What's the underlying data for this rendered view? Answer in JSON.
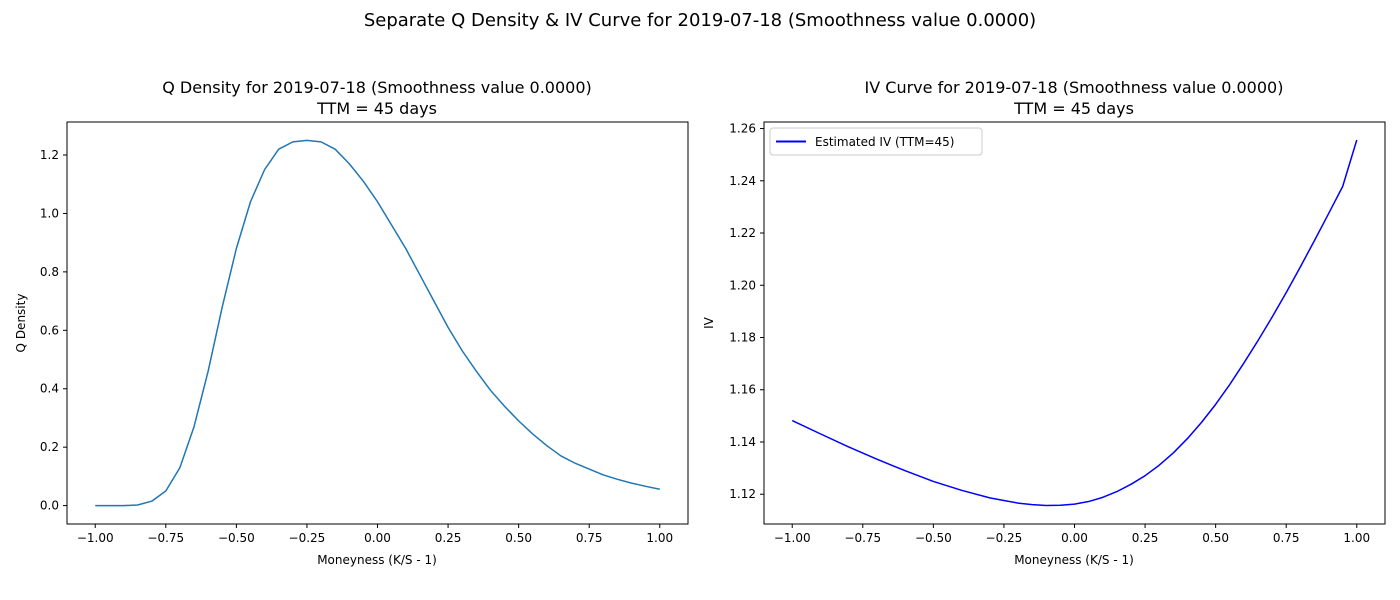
{
  "figure": {
    "suptitle": "Separate Q Density & IV Curve for 2019-07-18 (Smoothness value 0.0000)"
  },
  "chart_data": [
    {
      "type": "line",
      "title": "Q Density for 2019-07-18 (Smoothness value 0.0000)",
      "subtitle": "TTM = 45 days",
      "xlabel": "Moneyness (K/S - 1)",
      "ylabel": "Q Density",
      "xlim": [
        -1.1,
        1.1
      ],
      "ylim": [
        -0.063,
        1.313
      ],
      "xticks": [
        -1.0,
        -0.75,
        -0.5,
        -0.25,
        0.0,
        0.25,
        0.5,
        0.75,
        1.0
      ],
      "xtick_labels": [
        "−1.00",
        "−0.75",
        "−0.50",
        "−0.25",
        "0.00",
        "0.25",
        "0.50",
        "0.75",
        "1.00"
      ],
      "yticks": [
        0.0,
        0.2,
        0.4,
        0.6,
        0.8,
        1.0,
        1.2
      ],
      "ytick_labels": [
        "0.0",
        "0.2",
        "0.4",
        "0.6",
        "0.8",
        "1.0",
        "1.2"
      ],
      "grid": false,
      "series": [
        {
          "color": "#1f77b4",
          "x": [
            -1.0,
            -0.95,
            -0.9,
            -0.85,
            -0.8,
            -0.75,
            -0.7,
            -0.65,
            -0.6,
            -0.55,
            -0.5,
            -0.45,
            -0.4,
            -0.35,
            -0.3,
            -0.25,
            -0.2,
            -0.15,
            -0.1,
            -0.05,
            0.0,
            0.05,
            0.1,
            0.15,
            0.2,
            0.25,
            0.3,
            0.35,
            0.4,
            0.45,
            0.5,
            0.55,
            0.6,
            0.65,
            0.7,
            0.75,
            0.8,
            0.85,
            0.9,
            0.95,
            1.0
          ],
          "y": [
            0.0,
            0.0,
            0.0,
            0.002,
            0.015,
            0.05,
            0.13,
            0.27,
            0.46,
            0.68,
            0.88,
            1.04,
            1.15,
            1.22,
            1.245,
            1.25,
            1.245,
            1.22,
            1.17,
            1.11,
            1.04,
            0.96,
            0.88,
            0.79,
            0.7,
            0.61,
            0.53,
            0.46,
            0.395,
            0.34,
            0.29,
            0.245,
            0.205,
            0.17,
            0.145,
            0.125,
            0.105,
            0.09,
            0.077,
            0.066,
            0.056
          ]
        }
      ]
    },
    {
      "type": "line",
      "title": "IV Curve for 2019-07-18 (Smoothness value 0.0000)",
      "subtitle": "TTM = 45 days",
      "xlabel": "Moneyness (K/S - 1)",
      "ylabel": "IV",
      "xlim": [
        -1.1,
        1.1
      ],
      "ylim": [
        1.1086,
        1.2625
      ],
      "xticks": [
        -1.0,
        -0.75,
        -0.5,
        -0.25,
        0.0,
        0.25,
        0.5,
        0.75,
        1.0
      ],
      "xtick_labels": [
        "−1.00",
        "−0.75",
        "−0.50",
        "−0.25",
        "0.00",
        "0.25",
        "0.50",
        "0.75",
        "1.00"
      ],
      "yticks": [
        1.12,
        1.14,
        1.16,
        1.18,
        1.2,
        1.22,
        1.24,
        1.26
      ],
      "ytick_labels": [
        "1.12",
        "1.14",
        "1.16",
        "1.18",
        "1.20",
        "1.22",
        "1.24",
        "1.26"
      ],
      "grid": false,
      "legend_position": "upper-left",
      "series": [
        {
          "name": "Estimated IV (TTM=45)",
          "color": "#0000ff",
          "x": [
            -1.0,
            -0.9,
            -0.8,
            -0.7,
            -0.6,
            -0.5,
            -0.4,
            -0.3,
            -0.25,
            -0.2,
            -0.15,
            -0.1,
            -0.05,
            0.0,
            0.05,
            0.1,
            0.15,
            0.2,
            0.25,
            0.3,
            0.35,
            0.4,
            0.45,
            0.5,
            0.55,
            0.6,
            0.65,
            0.7,
            0.75,
            0.8,
            0.85,
            0.9,
            0.95,
            1.0
          ],
          "y": [
            1.1482,
            1.1431,
            1.1381,
            1.1334,
            1.129,
            1.1249,
            1.1215,
            1.1186,
            1.1176,
            1.1166,
            1.116,
            1.1157,
            1.1158,
            1.1162,
            1.1172,
            1.1188,
            1.121,
            1.1238,
            1.1271,
            1.1311,
            1.1358,
            1.1413,
            1.1475,
            1.1544,
            1.162,
            1.1702,
            1.1788,
            1.1878,
            1.1972,
            1.207,
            1.2171,
            1.2274,
            1.2378,
            1.2556
          ]
        }
      ]
    }
  ]
}
